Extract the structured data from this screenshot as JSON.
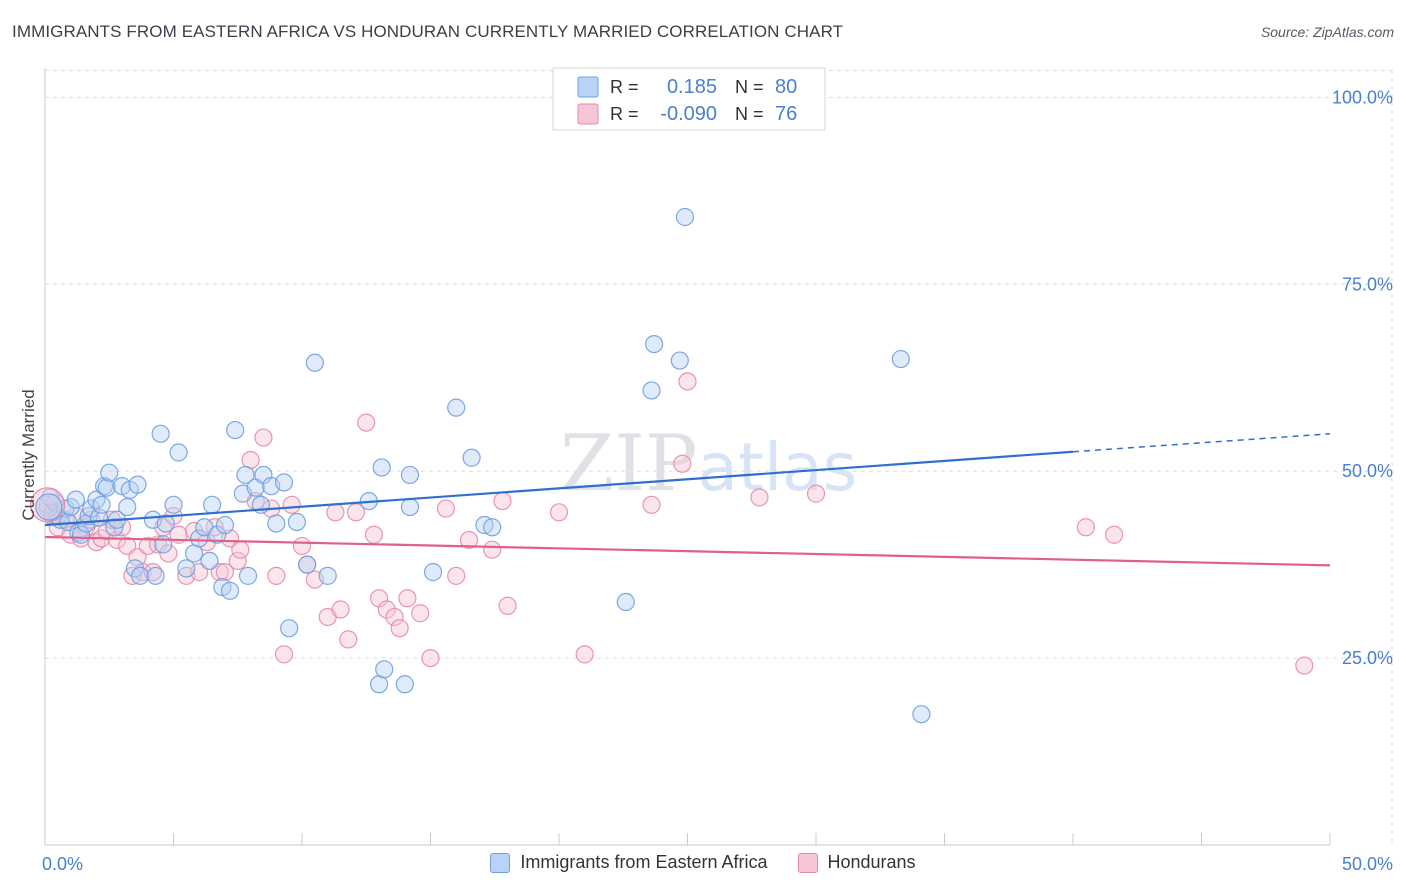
{
  "title": "IMMIGRANTS FROM EASTERN AFRICA VS HONDURAN CURRENTLY MARRIED CORRELATION CHART",
  "source": "Source: ZipAtlas.com",
  "watermark": "ZIPatlas",
  "colors": {
    "blue": "#6f9fe0",
    "blue_fill": "#b8d3f5",
    "blue_line": "#2f6fd0",
    "pink": "#e889a8",
    "pink_fill": "#f7c6d6",
    "pink_line": "#e0608a",
    "axis_label": "#4a7fcf",
    "grid": "#dcdde2"
  },
  "stats": {
    "r_label": "R =",
    "n_label": "N =",
    "blue_r": "0.185",
    "blue_n": "80",
    "pink_r": "-0.090",
    "pink_n": "76"
  },
  "chart_data": {
    "type": "scatter",
    "title": "IMMIGRANTS FROM EASTERN AFRICA VS HONDURAN CURRENTLY MARRIED CORRELATION CHART",
    "xlabel": "",
    "ylabel": "Currently Married",
    "xlim": [
      0,
      50
    ],
    "ylim": [
      0,
      105
    ],
    "x_tick_labels": [
      "0.0%",
      "50.0%"
    ],
    "y_ticks": [
      25,
      50,
      75,
      100
    ],
    "y_tick_labels": [
      "25.0%",
      "50.0%",
      "75.0%",
      "100.0%"
    ],
    "grid": true,
    "legend_position": "top-center",
    "series": [
      {
        "name": "Immigrants from Eastern Africa",
        "color": "#6f9fe0",
        "r": 0.185,
        "n": 80,
        "trend": {
          "x": [
            0,
            40
          ],
          "y": [
            42.8,
            52.6
          ],
          "dashed_to_x": 50,
          "dashed_to_y": 55.0
        },
        "points": [
          [
            0.1,
            45.5
          ],
          [
            0.3,
            44.5
          ],
          [
            0.4,
            45.8
          ],
          [
            0.5,
            44.0
          ],
          [
            0.6,
            43.5
          ],
          [
            0.8,
            45.0
          ],
          [
            0.9,
            43.2
          ],
          [
            1.0,
            45.2
          ],
          [
            1.2,
            46.2
          ],
          [
            1.3,
            41.8
          ],
          [
            1.4,
            41.5
          ],
          [
            1.6,
            43.0
          ],
          [
            1.7,
            44.0
          ],
          [
            1.8,
            45.0
          ],
          [
            2.0,
            46.2
          ],
          [
            2.1,
            43.8
          ],
          [
            2.3,
            48.0
          ],
          [
            2.4,
            47.8
          ],
          [
            2.5,
            49.8
          ],
          [
            2.7,
            42.5
          ],
          [
            2.8,
            43.5
          ],
          [
            3.0,
            48.0
          ],
          [
            3.2,
            45.2
          ],
          [
            3.3,
            47.5
          ],
          [
            3.5,
            37.0
          ],
          [
            3.6,
            48.2
          ],
          [
            3.7,
            36.0
          ],
          [
            4.2,
            43.5
          ],
          [
            4.3,
            36.0
          ],
          [
            4.5,
            55.0
          ],
          [
            4.6,
            40.2
          ],
          [
            4.7,
            43.0
          ],
          [
            5.0,
            45.5
          ],
          [
            5.2,
            52.5
          ],
          [
            5.5,
            37.0
          ],
          [
            5.8,
            39.0
          ],
          [
            6.0,
            41.0
          ],
          [
            6.2,
            42.5
          ],
          [
            6.5,
            45.5
          ],
          [
            6.7,
            41.5
          ],
          [
            6.9,
            34.5
          ],
          [
            7.0,
            42.8
          ],
          [
            7.2,
            34.0
          ],
          [
            7.4,
            55.5
          ],
          [
            7.7,
            47.0
          ],
          [
            7.8,
            49.5
          ],
          [
            7.9,
            36.0
          ],
          [
            8.2,
            47.8
          ],
          [
            8.4,
            45.5
          ],
          [
            8.5,
            49.5
          ],
          [
            8.8,
            48.0
          ],
          [
            9.0,
            43.0
          ],
          [
            9.3,
            48.5
          ],
          [
            9.5,
            29.0
          ],
          [
            9.8,
            43.2
          ],
          [
            10.2,
            37.5
          ],
          [
            10.5,
            64.5
          ],
          [
            11.0,
            36.0
          ],
          [
            12.6,
            46.0
          ],
          [
            13.1,
            50.5
          ],
          [
            13.0,
            21.5
          ],
          [
            13.2,
            23.5
          ],
          [
            14.0,
            21.5
          ],
          [
            14.2,
            45.2
          ],
          [
            14.2,
            49.5
          ],
          [
            15.1,
            36.5
          ],
          [
            16.0,
            58.5
          ],
          [
            16.6,
            51.8
          ],
          [
            17.1,
            42.8
          ],
          [
            17.4,
            42.5
          ],
          [
            22.6,
            32.5
          ],
          [
            23.6,
            60.8
          ],
          [
            23.7,
            67.0
          ],
          [
            24.7,
            64.8
          ],
          [
            24.9,
            84.0
          ],
          [
            33.3,
            65.0
          ],
          [
            34.1,
            17.5
          ],
          [
            0.2,
            46.5
          ],
          [
            2.2,
            45.5
          ],
          [
            6.4,
            38.0
          ]
        ]
      },
      {
        "name": "Hondurans",
        "color": "#e889a8",
        "r": -0.09,
        "n": 76,
        "trend": {
          "x": [
            0,
            50
          ],
          "y": [
            41.2,
            37.4
          ]
        },
        "points": [
          [
            0.1,
            45.0
          ],
          [
            0.3,
            44.0
          ],
          [
            0.5,
            42.5
          ],
          [
            0.8,
            43.5
          ],
          [
            1.0,
            41.5
          ],
          [
            1.2,
            44.0
          ],
          [
            1.4,
            41.0
          ],
          [
            1.6,
            42.5
          ],
          [
            1.8,
            43.5
          ],
          [
            2.0,
            40.5
          ],
          [
            2.2,
            41.0
          ],
          [
            2.4,
            42.0
          ],
          [
            2.6,
            43.5
          ],
          [
            2.8,
            40.8
          ],
          [
            3.0,
            42.5
          ],
          [
            3.2,
            40.0
          ],
          [
            3.4,
            36.0
          ],
          [
            3.6,
            38.5
          ],
          [
            3.8,
            36.5
          ],
          [
            4.0,
            40.0
          ],
          [
            4.2,
            36.5
          ],
          [
            4.4,
            40.2
          ],
          [
            4.6,
            42.5
          ],
          [
            4.8,
            39.0
          ],
          [
            5.0,
            44.0
          ],
          [
            5.2,
            41.5
          ],
          [
            5.5,
            36.0
          ],
          [
            5.8,
            42.0
          ],
          [
            6.0,
            36.5
          ],
          [
            6.3,
            40.5
          ],
          [
            6.6,
            42.5
          ],
          [
            6.8,
            36.5
          ],
          [
            7.0,
            36.5
          ],
          [
            7.2,
            41.0
          ],
          [
            7.5,
            38.0
          ],
          [
            7.6,
            39.5
          ],
          [
            8.0,
            51.5
          ],
          [
            8.2,
            46.0
          ],
          [
            8.5,
            54.5
          ],
          [
            8.8,
            45.0
          ],
          [
            9.0,
            36.0
          ],
          [
            9.3,
            25.5
          ],
          [
            9.6,
            45.5
          ],
          [
            10.0,
            40.0
          ],
          [
            10.2,
            37.5
          ],
          [
            10.5,
            35.5
          ],
          [
            11.0,
            30.5
          ],
          [
            11.3,
            44.5
          ],
          [
            11.5,
            31.5
          ],
          [
            11.8,
            27.5
          ],
          [
            12.1,
            44.5
          ],
          [
            12.5,
            56.5
          ],
          [
            12.8,
            41.5
          ],
          [
            13.0,
            33.0
          ],
          [
            13.3,
            31.5
          ],
          [
            13.6,
            30.5
          ],
          [
            13.8,
            29.0
          ],
          [
            14.1,
            33.0
          ],
          [
            14.6,
            31.0
          ],
          [
            15.0,
            25.0
          ],
          [
            15.6,
            45.0
          ],
          [
            16.0,
            36.0
          ],
          [
            16.5,
            40.8
          ],
          [
            17.4,
            39.5
          ],
          [
            17.8,
            46.0
          ],
          [
            18.0,
            32.0
          ],
          [
            20.0,
            44.5
          ],
          [
            21.0,
            25.5
          ],
          [
            23.6,
            45.5
          ],
          [
            24.8,
            51.0
          ],
          [
            25.0,
            62.0
          ],
          [
            27.8,
            46.5
          ],
          [
            30.0,
            47.0
          ],
          [
            40.5,
            42.5
          ],
          [
            41.6,
            41.5
          ],
          [
            49.0,
            24.0
          ]
        ]
      }
    ]
  }
}
